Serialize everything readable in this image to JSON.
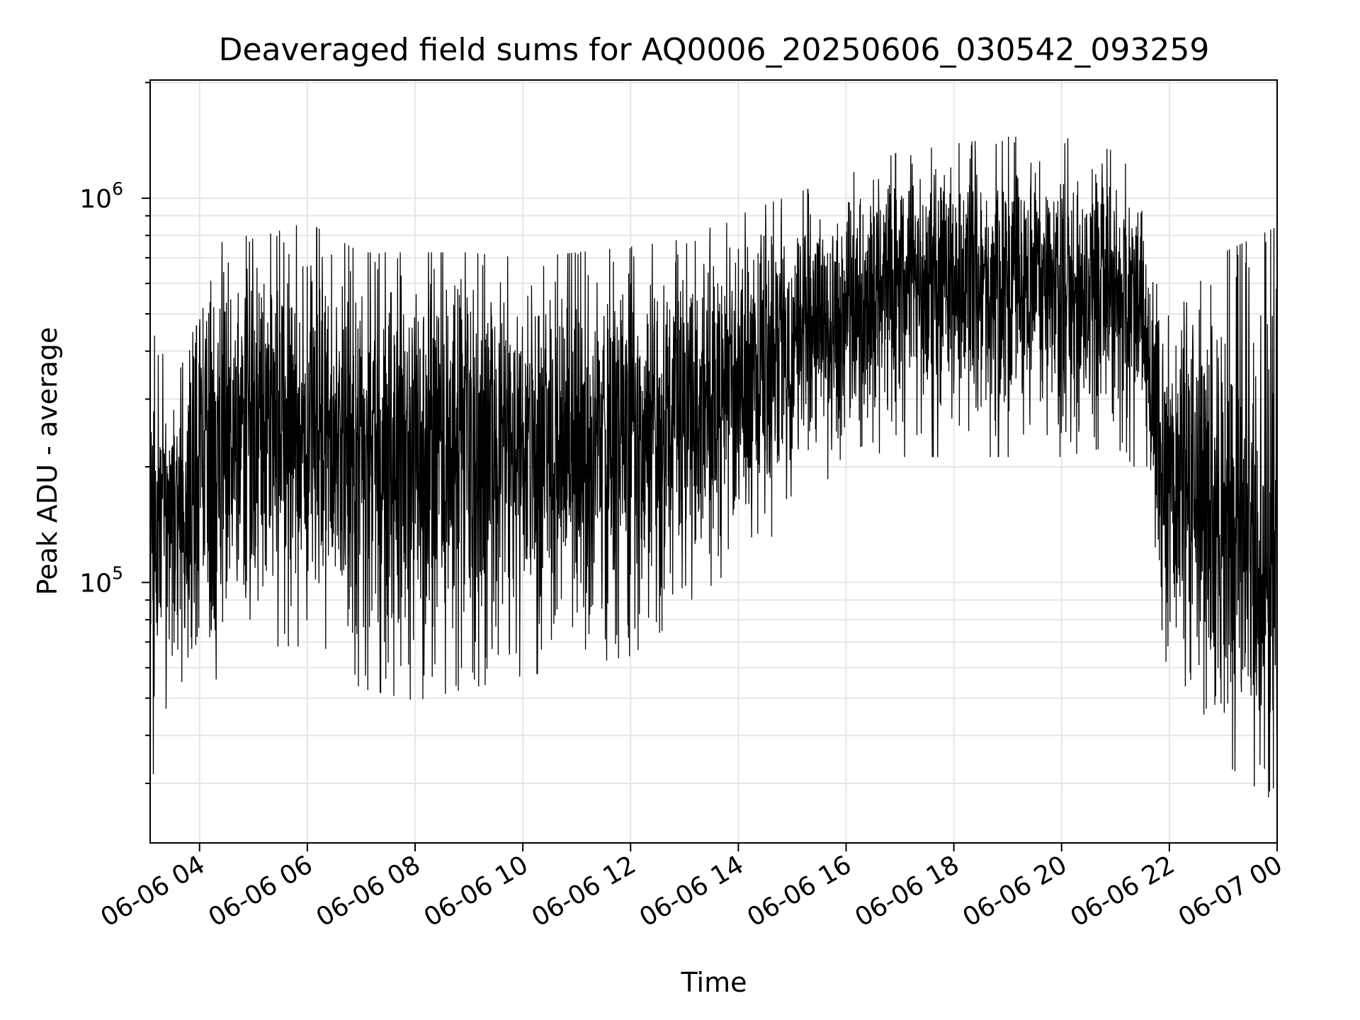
{
  "chart_data": {
    "type": "line",
    "title": "Deaveraged field sums for AQ0006_20250606_030542_093259",
    "xlabel": "Time",
    "ylabel": "Peak ADU - average",
    "x_axis": {
      "kind": "datetime",
      "range": [
        "2025-06-06 03:05",
        "2025-06-07 00:00"
      ],
      "tick_labels": [
        "06-06 04",
        "06-06 06",
        "06-06 08",
        "06-06 10",
        "06-06 12",
        "06-06 14",
        "06-06 16",
        "06-06 18",
        "06-06 20",
        "06-06 22",
        "06-07 00"
      ]
    },
    "y_axis": {
      "scale": "log",
      "range": [
        21000,
        2030000
      ],
      "major_tick_labels": [
        {
          "value": 100000,
          "base": "10",
          "exp": "5"
        },
        {
          "value": 1000000,
          "base": "10",
          "exp": "6"
        }
      ]
    },
    "grid": true,
    "line_color": "#000000",
    "series": [
      {
        "envelope": [
          {
            "t": "2025-06-06 03:05",
            "low": 40000,
            "median": 140000,
            "high": 420000
          },
          {
            "t": "2025-06-06 03:30",
            "low": 55000,
            "median": 150000,
            "high": 300000
          },
          {
            "t": "2025-06-06 04:00",
            "low": 65000,
            "median": 180000,
            "high": 400000
          },
          {
            "t": "2025-06-06 04:30",
            "low": 80000,
            "median": 250000,
            "high": 700000
          },
          {
            "t": "2025-06-06 05:00",
            "low": 90000,
            "median": 260000,
            "high": 650000
          },
          {
            "t": "2025-06-06 06:00",
            "low": 90000,
            "median": 250000,
            "high": 720000
          },
          {
            "t": "2025-06-06 07:00",
            "low": 70000,
            "median": 230000,
            "high": 600000
          },
          {
            "t": "2025-06-06 08:00",
            "low": 65000,
            "median": 230000,
            "high": 600000
          },
          {
            "t": "2025-06-06 09:00",
            "low": 70000,
            "median": 230000,
            "high": 600000
          },
          {
            "t": "2025-06-06 10:00",
            "low": 75000,
            "median": 220000,
            "high": 580000
          },
          {
            "t": "2025-06-06 11:00",
            "low": 80000,
            "median": 230000,
            "high": 600000
          },
          {
            "t": "2025-06-06 12:00",
            "low": 85000,
            "median": 250000,
            "high": 620000
          },
          {
            "t": "2025-06-06 13:00",
            "low": 110000,
            "median": 290000,
            "high": 650000
          },
          {
            "t": "2025-06-06 14:00",
            "low": 150000,
            "median": 340000,
            "high": 750000
          },
          {
            "t": "2025-06-06 15:00",
            "low": 190000,
            "median": 420000,
            "high": 850000
          },
          {
            "t": "2025-06-06 16:00",
            "low": 240000,
            "median": 500000,
            "high": 950000
          },
          {
            "t": "2025-06-06 17:00",
            "low": 280000,
            "median": 580000,
            "high": 1100000
          },
          {
            "t": "2025-06-06 18:00",
            "low": 280000,
            "median": 600000,
            "high": 1150000
          },
          {
            "t": "2025-06-06 19:00",
            "low": 280000,
            "median": 620000,
            "high": 1200000
          },
          {
            "t": "2025-06-06 20:00",
            "low": 280000,
            "median": 600000,
            "high": 1200000
          },
          {
            "t": "2025-06-06 21:00",
            "low": 300000,
            "median": 600000,
            "high": 1100000
          },
          {
            "t": "2025-06-06 21:30",
            "low": 250000,
            "median": 520000,
            "high": 900000
          },
          {
            "t": "2025-06-06 22:00",
            "low": 70000,
            "median": 180000,
            "high": 400000
          },
          {
            "t": "2025-06-06 23:00",
            "low": 45000,
            "median": 140000,
            "high": 600000
          },
          {
            "t": "2025-06-07 00:00",
            "low": 35000,
            "median": 110000,
            "high": 700000
          }
        ]
      }
    ]
  }
}
